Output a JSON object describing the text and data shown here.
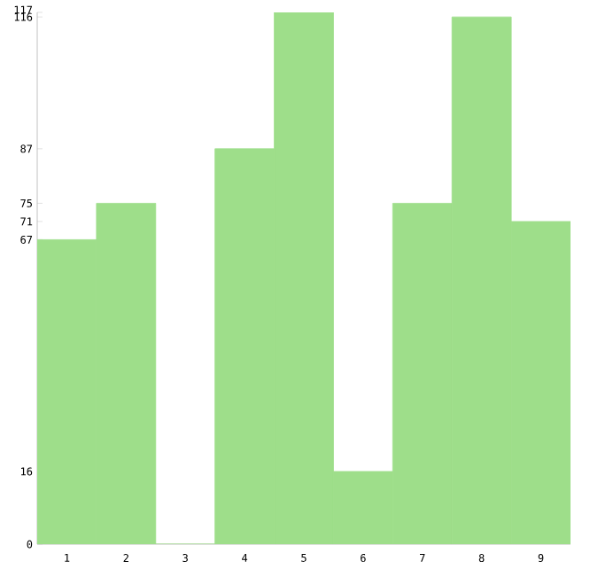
{
  "chart_data": {
    "type": "bar",
    "categories": [
      "1",
      "2",
      "3",
      "4",
      "5",
      "6",
      "7",
      "8",
      "9"
    ],
    "values": [
      67,
      75,
      0,
      87,
      117,
      16,
      75,
      116,
      71
    ],
    "color": "#9ede8a",
    "ylim": [
      0,
      117
    ],
    "yticks": [
      0,
      16,
      67,
      71,
      75,
      87,
      116,
      117
    ],
    "grid": false
  }
}
